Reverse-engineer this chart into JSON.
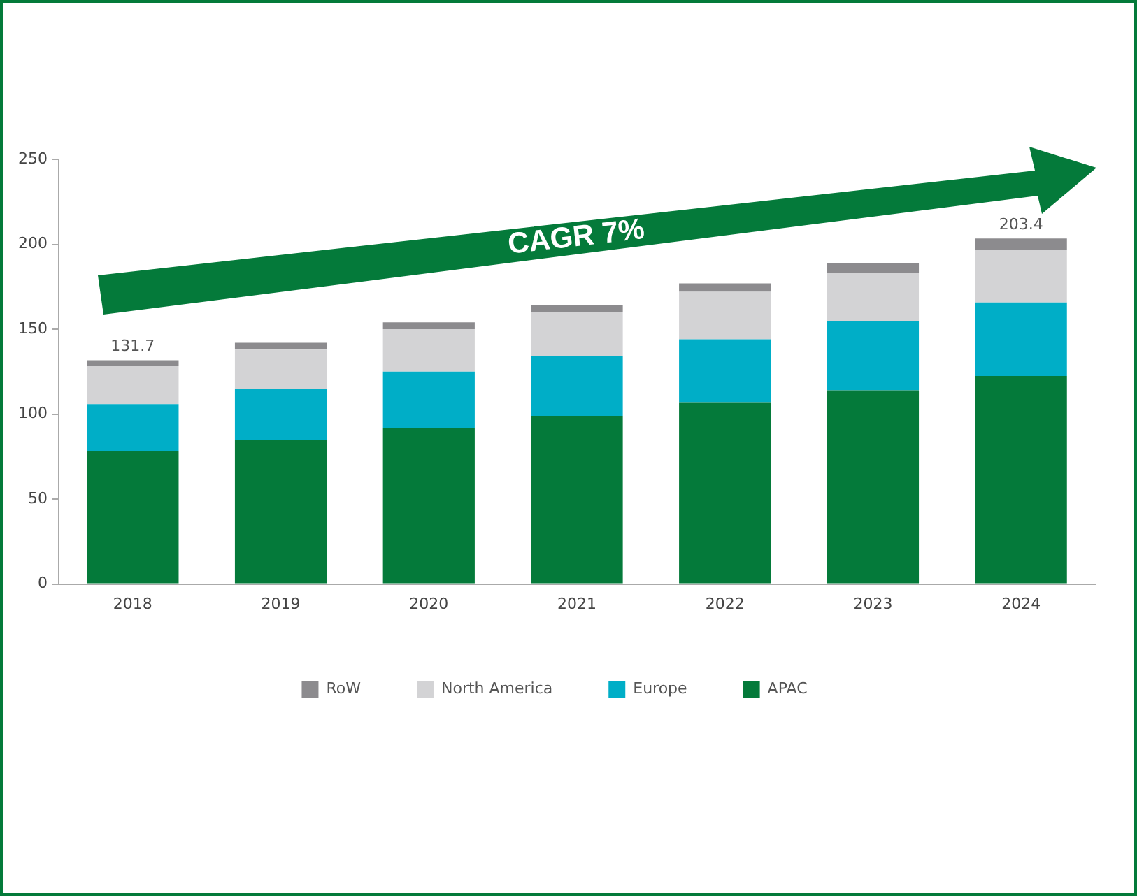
{
  "chart_data": {
    "type": "bar",
    "stacked": true,
    "categories": [
      "2018",
      "2019",
      "2020",
      "2021",
      "2022",
      "2023",
      "2024"
    ],
    "series": [
      {
        "name": "APAC",
        "color": "#047a3a",
        "values": [
          78.4,
          85,
          92,
          99,
          107,
          114,
          122.4
        ]
      },
      {
        "name": "Europe",
        "color": "#00aec7",
        "values": [
          27.5,
          30,
          33,
          35,
          37,
          41,
          43.4
        ]
      },
      {
        "name": "North America",
        "color": "#d3d3d5",
        "values": [
          22.6,
          23,
          25,
          26,
          28,
          28,
          30.8
        ]
      },
      {
        "name": "RoW",
        "color": "#8c8b8e",
        "values": [
          3.2,
          4,
          4,
          4,
          5,
          6,
          6.8
        ]
      }
    ],
    "totals": [
      "131.7",
      null,
      null,
      null,
      null,
      null,
      "203.4"
    ],
    "ylim": [
      0,
      250
    ],
    "yticks": [
      0,
      50,
      100,
      150,
      200,
      250
    ],
    "grid": false,
    "legend": "bottom",
    "annotations": [
      "CAGR 7%"
    ]
  }
}
